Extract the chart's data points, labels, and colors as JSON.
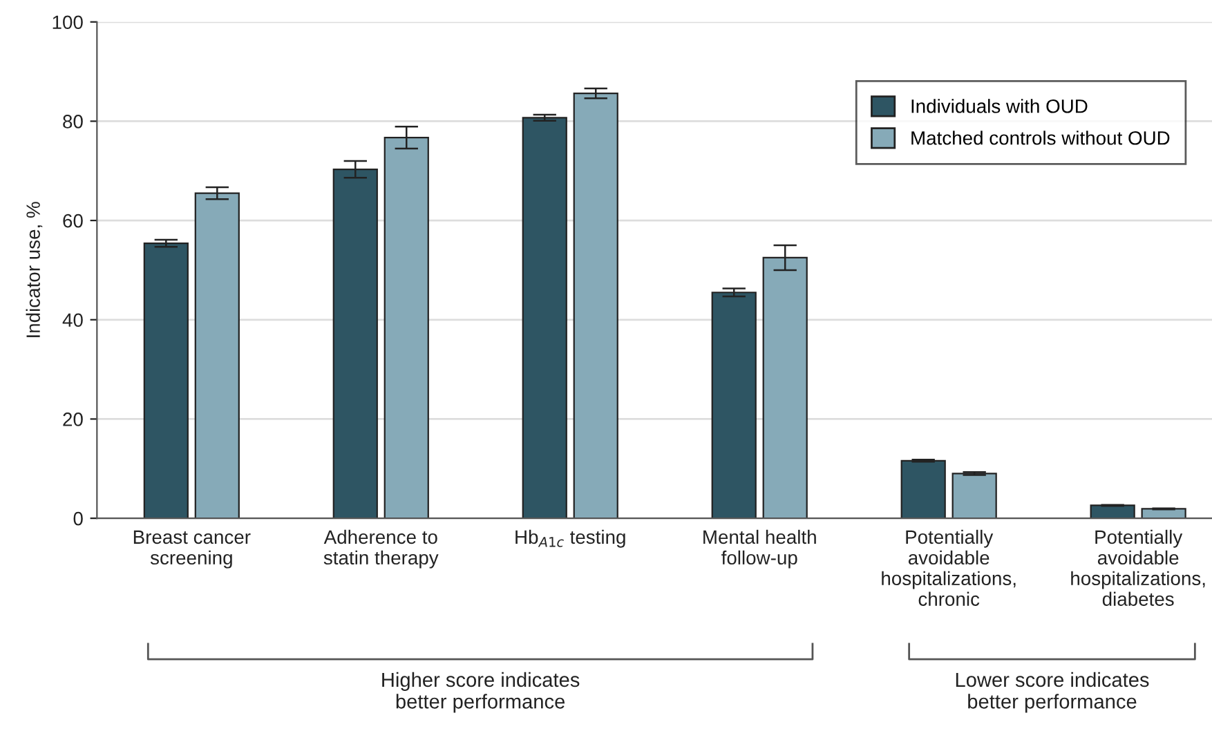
{
  "chart_data": {
    "type": "bar",
    "ylabel": "Indicator use, %",
    "categories": [
      "Breast cancer\nscreening",
      "Adherence to\nstatin therapy",
      "Hb$_{A1c}$ testing",
      "Mental health\nfollow-up",
      "Potentially\navoidable\nhospitalizations,\nchronic",
      "Potentially\navoidable\nhospitalizations,\ndiabetes"
    ],
    "series": [
      {
        "name": "Individuals with OUD",
        "color": "#2e5563",
        "values": [
          55.4,
          70.3,
          80.7,
          45.5,
          11.6,
          2.6
        ],
        "errors": [
          0.7,
          1.7,
          0.6,
          0.8,
          0.2,
          0.1
        ]
      },
      {
        "name": "Matched controls without OUD",
        "color": "#86aab8",
        "values": [
          65.5,
          76.7,
          85.6,
          52.5,
          9.0,
          1.9
        ],
        "errors": [
          1.2,
          2.2,
          1.0,
          2.5,
          0.3,
          0.1
        ]
      }
    ],
    "ylim": [
      0,
      100
    ],
    "yticks": [
      0,
      20,
      40,
      60,
      80,
      100
    ],
    "grid": "y",
    "legend": "top right",
    "annotations": [
      "Higher score indicates\nbetter performance",
      "Lower score indicates\nbetter performance"
    ]
  }
}
